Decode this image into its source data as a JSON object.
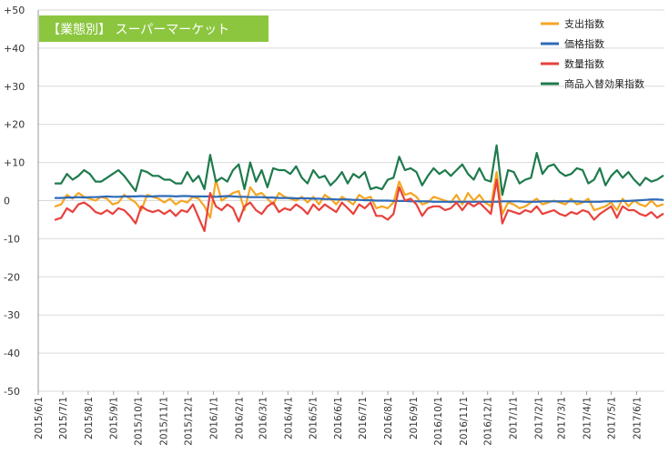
{
  "chart_data": {
    "type": "line",
    "title": "【業態別】 スーパーマーケット",
    "title_bg_color": "#8cc63f",
    "ylim": [
      -50,
      50
    ],
    "yticks": [
      "+50",
      "+40",
      "+30",
      "+20",
      "+10",
      "0",
      "-10",
      "-20",
      "-30",
      "-40",
      "-50"
    ],
    "ytick_values": [
      50,
      40,
      30,
      20,
      10,
      0,
      -10,
      -20,
      -30,
      -40,
      -50
    ],
    "grid": true,
    "legend_position": "top-right",
    "x_range": [
      "2015-06-01",
      "2017-07-05"
    ],
    "xticks": [
      "2015/6/1",
      "2015/7/1",
      "2015/8/1",
      "2015/9/1",
      "2015/10/1",
      "2015/11/1",
      "2015/12/1",
      "2016/1/1",
      "2016/2/1",
      "2016/3/1",
      "2016/4/1",
      "2016/5/1",
      "2016/6/1",
      "2016/7/1",
      "2016/8/1",
      "2016/9/1",
      "2016/10/1",
      "2016/11/1",
      "2016/12/1",
      "2017/1/1",
      "2017/2/1",
      "2017/3/1",
      "2017/4/1",
      "2017/5/1",
      "2017/6/1"
    ],
    "x": [
      "2015-06-22",
      "2015-06-29",
      "2015-07-06",
      "2015-07-13",
      "2015-07-20",
      "2015-07-27",
      "2015-08-03",
      "2015-08-10",
      "2015-08-17",
      "2015-08-24",
      "2015-08-31",
      "2015-09-07",
      "2015-09-14",
      "2015-09-21",
      "2015-09-28",
      "2015-10-05",
      "2015-10-12",
      "2015-10-19",
      "2015-10-26",
      "2015-11-02",
      "2015-11-09",
      "2015-11-16",
      "2015-11-23",
      "2015-11-30",
      "2015-12-07",
      "2015-12-14",
      "2015-12-21",
      "2015-12-28",
      "2016-01-04",
      "2016-01-11",
      "2016-01-18",
      "2016-01-25",
      "2016-02-01",
      "2016-02-08",
      "2016-02-15",
      "2016-02-22",
      "2016-02-29",
      "2016-03-07",
      "2016-03-14",
      "2016-03-21",
      "2016-03-28",
      "2016-04-04",
      "2016-04-11",
      "2016-04-18",
      "2016-04-25",
      "2016-05-02",
      "2016-05-09",
      "2016-05-16",
      "2016-05-23",
      "2016-05-30",
      "2016-06-06",
      "2016-06-13",
      "2016-06-20",
      "2016-06-27",
      "2016-07-04",
      "2016-07-11",
      "2016-07-18",
      "2016-07-25",
      "2016-08-01",
      "2016-08-08",
      "2016-08-15",
      "2016-08-22",
      "2016-08-29",
      "2016-09-05",
      "2016-09-12",
      "2016-09-19",
      "2016-09-26",
      "2016-10-03",
      "2016-10-10",
      "2016-10-17",
      "2016-10-24",
      "2016-10-31",
      "2016-11-07",
      "2016-11-14",
      "2016-11-21",
      "2016-11-28",
      "2016-12-05",
      "2016-12-12",
      "2016-12-19",
      "2016-12-26",
      "2017-01-02",
      "2017-01-09",
      "2017-01-16",
      "2017-01-23",
      "2017-01-30",
      "2017-02-06",
      "2017-02-13",
      "2017-02-20",
      "2017-02-27",
      "2017-03-06",
      "2017-03-13",
      "2017-03-20",
      "2017-03-27",
      "2017-04-03",
      "2017-04-10",
      "2017-04-17",
      "2017-04-24",
      "2017-05-01",
      "2017-05-08",
      "2017-05-15",
      "2017-05-22",
      "2017-05-29",
      "2017-06-05",
      "2017-06-12",
      "2017-06-19",
      "2017-06-26",
      "2017-07-03"
    ],
    "series": [
      {
        "name": "支出指数",
        "color": "#f5a623",
        "values": [
          -1.5,
          -1.0,
          1.5,
          0.5,
          2.0,
          1.0,
          0.5,
          0.0,
          1.0,
          0.5,
          -1.0,
          -0.5,
          1.5,
          0.5,
          -0.5,
          -2.5,
          1.5,
          1.0,
          0.5,
          -0.5,
          0.5,
          -1.0,
          0.0,
          -0.5,
          1.0,
          0.5,
          -1.5,
          -4.5,
          5.5,
          0.0,
          1.0,
          2.0,
          2.5,
          -2.5,
          3.5,
          1.5,
          2.0,
          0.5,
          -1.0,
          2.0,
          1.0,
          0.5,
          0.0,
          1.0,
          -0.5,
          1.0,
          -1.0,
          1.5,
          0.5,
          -1.0,
          1.0,
          0.0,
          -1.0,
          1.5,
          0.5,
          1.0,
          -2.0,
          -1.5,
          -2.0,
          -0.5,
          5.0,
          1.5,
          2.0,
          1.0,
          -1.0,
          -0.5,
          1.0,
          0.5,
          0.0,
          -0.5,
          1.5,
          -1.0,
          2.0,
          0.0,
          1.5,
          -0.5,
          -1.5,
          7.5,
          -3.5,
          -0.5,
          -1.0,
          -2.0,
          -1.5,
          -0.5,
          0.5,
          -1.0,
          -0.5,
          0.0,
          -0.5,
          -1.0,
          0.5,
          -1.0,
          -0.5,
          0.5,
          -2.5,
          -2.0,
          -1.5,
          -0.5,
          -2.5,
          0.5,
          -1.5,
          0.0,
          -1.0,
          -1.5,
          0.0,
          -1.5,
          -1.0
        ]
      },
      {
        "name": "価格指数",
        "color": "#2e6ab8",
        "values": [
          0.7,
          0.7,
          0.8,
          0.8,
          0.9,
          0.8,
          0.9,
          0.9,
          1.0,
          1.1,
          1.0,
          1.0,
          1.1,
          1.1,
          1.1,
          1.2,
          1.1,
          1.1,
          1.2,
          1.2,
          1.2,
          1.1,
          1.2,
          1.2,
          1.1,
          1.1,
          1.1,
          1.1,
          1.0,
          1.1,
          1.2,
          1.1,
          1.0,
          1.0,
          0.9,
          0.9,
          0.9,
          0.8,
          0.8,
          0.7,
          0.7,
          0.7,
          0.6,
          0.6,
          0.6,
          0.5,
          0.5,
          0.4,
          0.4,
          0.3,
          0.3,
          0.3,
          0.2,
          0.2,
          0.1,
          0.1,
          0.0,
          0.0,
          0.0,
          -0.1,
          -0.1,
          -0.1,
          -0.2,
          -0.2,
          -0.2,
          -0.2,
          -0.3,
          -0.3,
          -0.3,
          -0.3,
          -0.3,
          -0.3,
          -0.3,
          -0.3,
          -0.3,
          -0.3,
          -0.3,
          -0.3,
          -0.2,
          -0.2,
          -0.2,
          -0.2,
          -0.3,
          -0.3,
          -0.3,
          -0.2,
          -0.2,
          -0.2,
          -0.2,
          -0.2,
          -0.2,
          -0.2,
          -0.3,
          -0.3,
          -0.3,
          -0.3,
          -0.2,
          -0.2,
          -0.2,
          -0.1,
          -0.1,
          0.0,
          0.1,
          0.2,
          0.3,
          0.3,
          0.2
        ]
      },
      {
        "name": "数量指数",
        "color": "#e8413c",
        "values": [
          -5.0,
          -4.5,
          -2.0,
          -3.0,
          -1.0,
          -0.5,
          -1.5,
          -3.0,
          -3.5,
          -2.5,
          -3.5,
          -2.0,
          -2.5,
          -4.0,
          -6.0,
          -1.5,
          -2.5,
          -3.0,
          -2.5,
          -3.5,
          -2.5,
          -4.0,
          -2.5,
          -3.0,
          -1.0,
          -4.5,
          -8.0,
          2.0,
          -1.5,
          -2.5,
          -1.0,
          -2.0,
          -5.5,
          -1.5,
          -0.5,
          -2.5,
          -3.5,
          -1.5,
          -0.5,
          -3.0,
          -2.0,
          -2.5,
          -1.0,
          -2.0,
          -3.5,
          -1.0,
          -2.5,
          -1.0,
          -2.0,
          -3.0,
          -0.5,
          -2.0,
          -3.5,
          -1.0,
          -2.0,
          -0.5,
          -4.0,
          -4.0,
          -5.0,
          -3.5,
          3.5,
          0.0,
          0.5,
          -1.0,
          -4.0,
          -2.0,
          -1.5,
          -1.5,
          -2.5,
          -2.0,
          -0.5,
          -2.5,
          -0.5,
          -1.5,
          -0.5,
          -2.0,
          -3.5,
          5.5,
          -6.0,
          -2.5,
          -3.0,
          -3.5,
          -2.5,
          -3.0,
          -1.5,
          -3.5,
          -3.0,
          -2.5,
          -3.5,
          -4.0,
          -3.0,
          -3.5,
          -2.5,
          -3.0,
          -5.0,
          -3.5,
          -2.5,
          -1.5,
          -4.5,
          -1.5,
          -2.5,
          -2.5,
          -3.5,
          -4.0,
          -3.0,
          -4.5,
          -3.5
        ]
      },
      {
        "name": "商品入替効果指数",
        "color": "#1e7a4c",
        "values": [
          4.5,
          4.5,
          7.0,
          5.5,
          6.5,
          8.0,
          7.0,
          5.0,
          5.0,
          6.0,
          7.0,
          8.0,
          6.5,
          4.5,
          2.5,
          8.0,
          7.5,
          6.5,
          6.5,
          5.5,
          5.5,
          4.5,
          4.5,
          7.5,
          5.0,
          6.5,
          3.0,
          12.0,
          5.0,
          6.0,
          5.0,
          8.0,
          9.5,
          3.0,
          10.0,
          5.0,
          8.0,
          3.5,
          8.5,
          8.0,
          8.0,
          7.0,
          9.0,
          6.0,
          4.5,
          8.0,
          6.0,
          6.5,
          4.0,
          5.5,
          7.5,
          4.5,
          7.0,
          6.0,
          7.5,
          3.0,
          3.5,
          3.0,
          5.5,
          6.0,
          11.5,
          8.0,
          8.5,
          7.5,
          4.0,
          6.5,
          8.5,
          7.0,
          8.0,
          6.5,
          8.0,
          9.5,
          7.0,
          5.5,
          8.5,
          5.5,
          5.0,
          14.5,
          1.5,
          8.0,
          7.5,
          4.5,
          5.5,
          6.0,
          12.5,
          7.0,
          9.0,
          9.5,
          7.5,
          6.5,
          7.0,
          8.5,
          8.0,
          4.5,
          5.5,
          8.5,
          4.0,
          6.5,
          8.0,
          6.0,
          7.5,
          5.5,
          4.0,
          6.0,
          5.0,
          5.5,
          6.5
        ]
      }
    ]
  }
}
